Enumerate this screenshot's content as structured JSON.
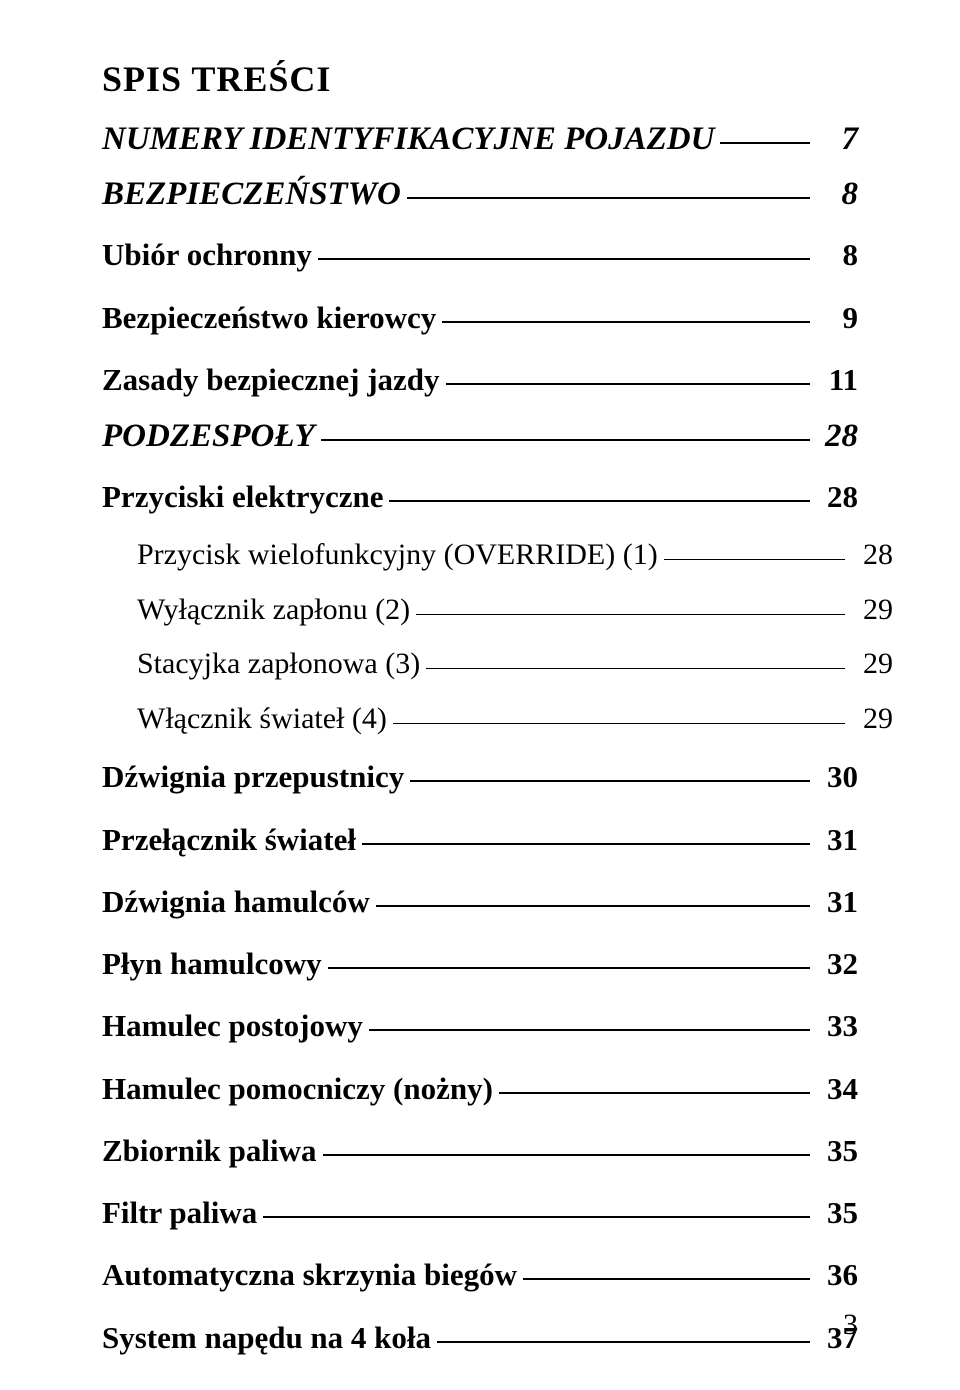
{
  "document": {
    "title": "SPIS  TREŚCI",
    "page_number": "3",
    "colors": {
      "text": "#000000",
      "background": "#ffffff",
      "leader": "#000000"
    },
    "typography": {
      "title_fontsize_pt": 27,
      "h1_fontsize_pt": 25,
      "h2_fontsize_pt": 23,
      "h3_fontsize_pt": 22,
      "font_family": "Times New Roman"
    },
    "entries": [
      {
        "level": 0,
        "style": "h1-italic",
        "label": "NUMERY IDENTYFIKACYJNE POJAZDU",
        "page": "7"
      },
      {
        "level": 0,
        "style": "h1-italic",
        "label": "BEZPIECZEŃSTWO",
        "page": "8"
      },
      {
        "level": 1,
        "style": "h2-bold",
        "label": "Ubiór ochronny",
        "page": "8"
      },
      {
        "level": 1,
        "style": "h2-bold",
        "label": "Bezpieczeństwo kierowcy",
        "page": "9"
      },
      {
        "level": 1,
        "style": "h2-bold",
        "label": "Zasady bezpiecznej jazdy",
        "page": "11"
      },
      {
        "level": 0,
        "style": "h1-italic",
        "label": "PODZESPOŁY",
        "page": "28"
      },
      {
        "level": 1,
        "style": "h2-bold",
        "label": "Przyciski elektryczne",
        "page": "28"
      },
      {
        "level": 2,
        "style": "h3",
        "label": "Przycisk wielofunkcyjny (OVERRIDE) (1)",
        "page": "28"
      },
      {
        "level": 2,
        "style": "h3",
        "label": "Wyłącznik zapłonu (2)",
        "page": "29"
      },
      {
        "level": 2,
        "style": "h3",
        "label": "Stacyjka zapłonowa (3)",
        "page": "29"
      },
      {
        "level": 2,
        "style": "h3",
        "label": "Włącznik świateł (4)",
        "page": "29"
      },
      {
        "level": 1,
        "style": "h2-bold",
        "label": "Dźwignia przepustnicy",
        "page": "30"
      },
      {
        "level": 1,
        "style": "h2-bold",
        "label": "Przełącznik świateł",
        "page": "31"
      },
      {
        "level": 1,
        "style": "h2-bold",
        "label": "Dźwignia hamulców",
        "page": "31"
      },
      {
        "level": 1,
        "style": "h2-bold",
        "label": "Płyn hamulcowy",
        "page": "32"
      },
      {
        "level": 1,
        "style": "h2-bold",
        "label": "Hamulec postojowy",
        "page": "33"
      },
      {
        "level": 1,
        "style": "h2-bold",
        "label": "Hamulec pomocniczy (nożny)",
        "page": "34"
      },
      {
        "level": 1,
        "style": "h2-bold",
        "label": "Zbiornik paliwa",
        "page": "35"
      },
      {
        "level": 1,
        "style": "h2-bold",
        "label": "Filtr paliwa",
        "page": "35"
      },
      {
        "level": 1,
        "style": "h2-bold",
        "label": "Automatyczna skrzynia biegów",
        "page": "36"
      },
      {
        "level": 1,
        "style": "h2-bold",
        "label": "System napędu na 4 koła",
        "page": "37"
      }
    ]
  }
}
